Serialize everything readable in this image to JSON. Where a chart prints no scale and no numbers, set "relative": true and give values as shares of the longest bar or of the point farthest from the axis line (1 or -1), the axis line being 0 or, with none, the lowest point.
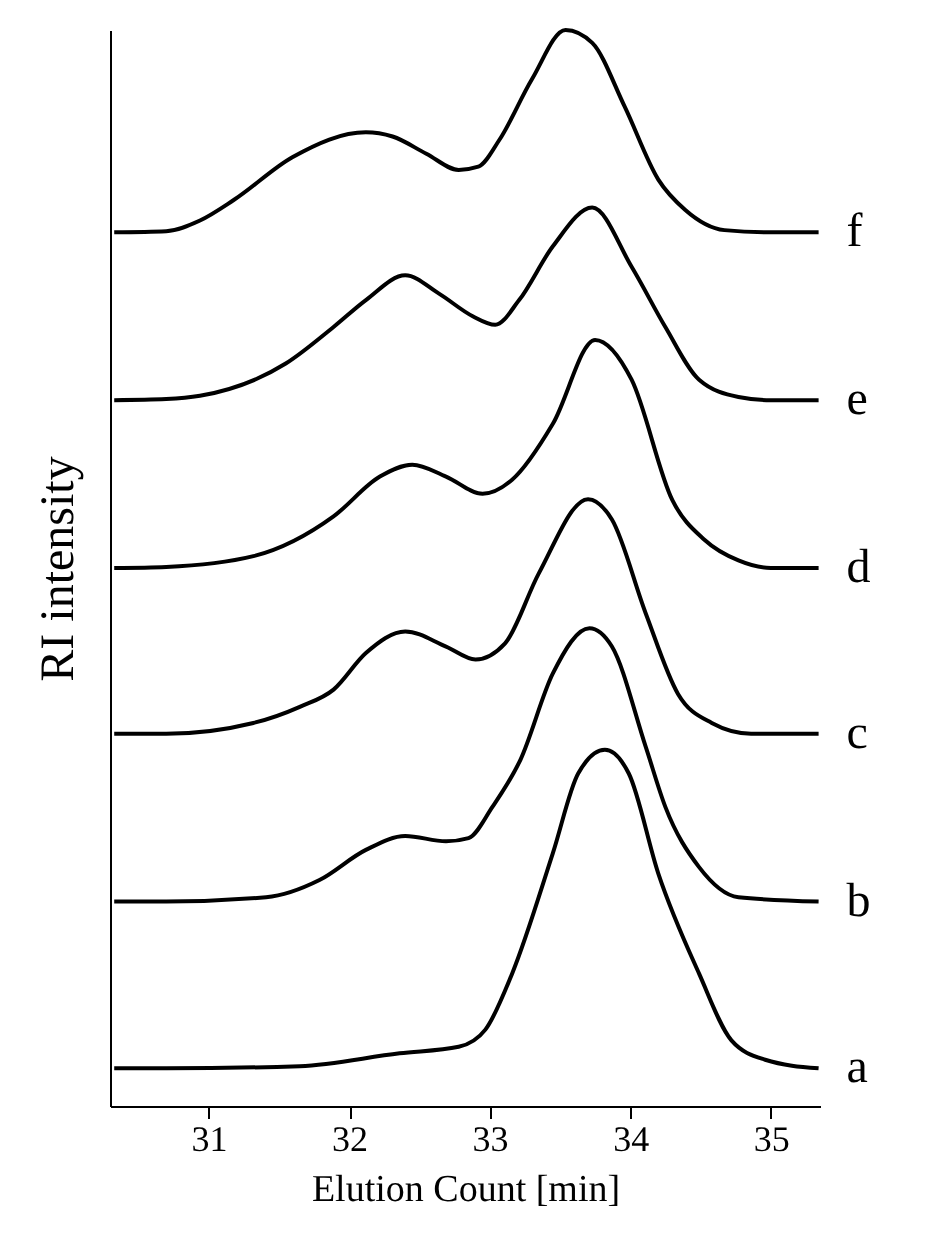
{
  "chart_data": {
    "type": "line",
    "relative": true,
    "xlabel": "Elution Count [min]",
    "ylabel": "RI intensity",
    "xlim": [
      30.3,
      35.35
    ],
    "xticks": [
      31,
      32,
      33,
      34,
      35
    ],
    "grid": false,
    "series": [
      {
        "name": "f",
        "color": "#000000",
        "x": [
          30.33,
          30.7,
          30.94,
          31.18,
          31.6,
          32.12,
          32.31,
          32.55,
          32.78,
          32.92,
          33.07,
          33.3,
          33.54,
          33.73,
          33.96,
          34.2,
          34.39,
          34.67,
          34.96,
          35.34
        ],
        "values": [
          0.812,
          0.813,
          0.823,
          0.842,
          0.882,
          0.905,
          0.901,
          0.885,
          0.87,
          0.873,
          0.898,
          0.954,
          1.0,
          0.988,
          0.929,
          0.861,
          0.833,
          0.814,
          0.812,
          0.812
        ]
      },
      {
        "name": "e",
        "color": "#000000",
        "x": [
          30.33,
          30.7,
          30.94,
          31.55,
          31.89,
          32.12,
          32.4,
          32.64,
          32.88,
          33.04,
          33.21,
          33.45,
          33.73,
          34.01,
          34.25,
          34.49,
          34.77,
          35.0,
          35.34
        ],
        "values": [
          0.656,
          0.657,
          0.66,
          0.69,
          0.724,
          0.749,
          0.772,
          0.755,
          0.734,
          0.726,
          0.749,
          0.799,
          0.835,
          0.78,
          0.724,
          0.675,
          0.659,
          0.656,
          0.656
        ]
      },
      {
        "name": "d",
        "color": "#000000",
        "x": [
          30.33,
          30.7,
          31.32,
          31.89,
          32.22,
          32.45,
          32.69,
          32.95,
          33.16,
          33.45,
          33.75,
          34.01,
          34.3,
          34.53,
          34.77,
          35.0,
          35.34
        ],
        "values": [
          0.5,
          0.501,
          0.511,
          0.548,
          0.585,
          0.596,
          0.585,
          0.569,
          0.582,
          0.634,
          0.712,
          0.675,
          0.563,
          0.526,
          0.507,
          0.5,
          0.5
        ]
      },
      {
        "name": "c",
        "color": "#000000",
        "x": [
          30.33,
          30.7,
          31.32,
          31.65,
          31.89,
          32.12,
          32.4,
          32.69,
          32.9,
          33.11,
          33.35,
          33.7,
          33.87,
          34.11,
          34.34,
          34.58,
          34.86,
          35.34
        ],
        "values": [
          0.346,
          0.346,
          0.356,
          0.371,
          0.387,
          0.421,
          0.441,
          0.427,
          0.415,
          0.43,
          0.495,
          0.564,
          0.545,
          0.458,
          0.383,
          0.356,
          0.346,
          0.346
        ]
      },
      {
        "name": "b",
        "color": "#000000",
        "x": [
          30.33,
          30.7,
          31.41,
          31.79,
          32.12,
          32.4,
          32.69,
          32.85,
          33.02,
          33.22,
          33.45,
          33.71,
          33.87,
          34.11,
          34.25,
          34.49,
          34.77,
          35.34
        ],
        "values": [
          0.19,
          0.19,
          0.194,
          0.21,
          0.238,
          0.251,
          0.246,
          0.249,
          0.278,
          0.322,
          0.402,
          0.444,
          0.427,
          0.334,
          0.278,
          0.222,
          0.194,
          0.19
        ]
      },
      {
        "name": "a",
        "color": "#000000",
        "x": [
          30.33,
          30.7,
          31.65,
          32.36,
          32.78,
          32.97,
          33.16,
          33.45,
          33.63,
          33.82,
          33.99,
          34.2,
          34.49,
          34.72,
          34.96,
          35.34
        ],
        "values": [
          0.035,
          0.035,
          0.037,
          0.049,
          0.055,
          0.071,
          0.123,
          0.235,
          0.309,
          0.331,
          0.309,
          0.216,
          0.123,
          0.061,
          0.043,
          0.035
        ]
      }
    ]
  }
}
